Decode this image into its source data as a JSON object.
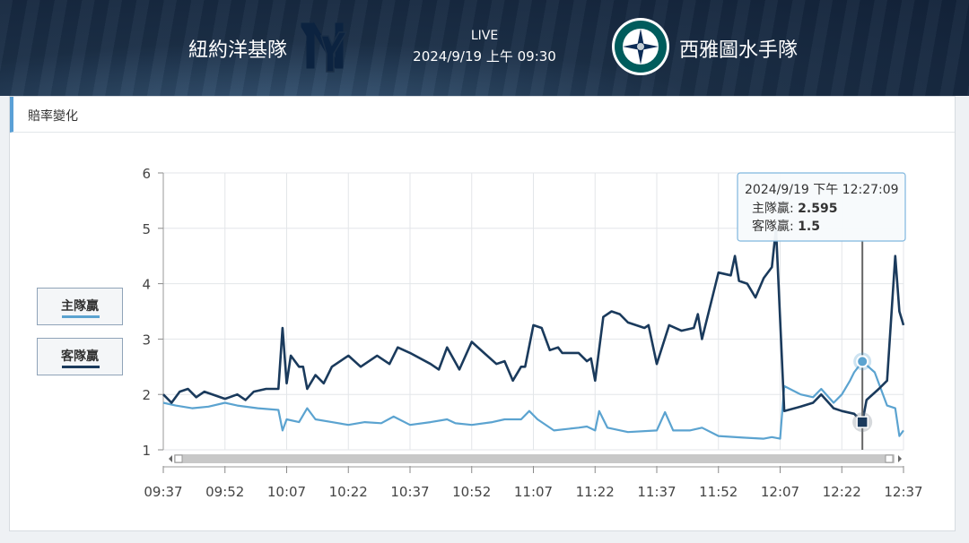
{
  "header": {
    "home_team": "紐約洋基隊",
    "away_team": "西雅圖水手隊",
    "status": "LIVE",
    "datetime": "2024/9/19 上午 09:30",
    "home_logo_icon": "yankees-ny-logo-icon",
    "away_logo_icon": "mariners-compass-logo-icon"
  },
  "panel": {
    "title": "賠率變化"
  },
  "legend": {
    "home_label": "主隊贏",
    "away_label": "客隊贏"
  },
  "colors": {
    "home": "#5ba3d0",
    "away": "#1a3a5c"
  },
  "tooltip": {
    "time": "2024/9/19 下午 12:27:09",
    "home_label": "主隊贏:",
    "home_value": "2.595",
    "away_label": "客隊贏:",
    "away_value": "1.5"
  },
  "chart_data": {
    "type": "line",
    "ylim": [
      1,
      6
    ],
    "yticks": [
      "1",
      "2",
      "3",
      "4",
      "5",
      "6"
    ],
    "xticks": [
      "09:37",
      "09:52",
      "10:07",
      "10:22",
      "10:37",
      "10:52",
      "11:07",
      "11:22",
      "11:37",
      "11:52",
      "12:07",
      "12:22",
      "12:37"
    ],
    "x_start_label": "09:37",
    "series": [
      {
        "name": "主隊贏",
        "color": "#5ba3d0",
        "points": [
          [
            "09:37",
            1.85
          ],
          [
            "09:40",
            1.8
          ],
          [
            "09:44",
            1.75
          ],
          [
            "09:48",
            1.78
          ],
          [
            "09:52",
            1.85
          ],
          [
            "09:55",
            1.8
          ],
          [
            "10:00",
            1.75
          ],
          [
            "10:05",
            1.72
          ],
          [
            "10:06",
            1.35
          ],
          [
            "10:07",
            1.55
          ],
          [
            "10:10",
            1.5
          ],
          [
            "10:12",
            1.75
          ],
          [
            "10:14",
            1.55
          ],
          [
            "10:18",
            1.5
          ],
          [
            "10:22",
            1.45
          ],
          [
            "10:26",
            1.5
          ],
          [
            "10:30",
            1.48
          ],
          [
            "10:33",
            1.6
          ],
          [
            "10:37",
            1.45
          ],
          [
            "10:42",
            1.5
          ],
          [
            "10:46",
            1.55
          ],
          [
            "10:48",
            1.48
          ],
          [
            "10:52",
            1.45
          ],
          [
            "10:57",
            1.5
          ],
          [
            "11:00",
            1.55
          ],
          [
            "11:04",
            1.55
          ],
          [
            "11:06",
            1.7
          ],
          [
            "11:08",
            1.55
          ],
          [
            "11:12",
            1.35
          ],
          [
            "11:18",
            1.4
          ],
          [
            "11:20",
            1.42
          ],
          [
            "11:22",
            1.35
          ],
          [
            "11:23",
            1.7
          ],
          [
            "11:25",
            1.4
          ],
          [
            "11:30",
            1.32
          ],
          [
            "11:37",
            1.35
          ],
          [
            "11:39",
            1.68
          ],
          [
            "11:41",
            1.35
          ],
          [
            "11:45",
            1.35
          ],
          [
            "11:48",
            1.4
          ],
          [
            "11:52",
            1.25
          ],
          [
            "11:58",
            1.22
          ],
          [
            "12:03",
            1.2
          ],
          [
            "12:05",
            1.23
          ],
          [
            "12:07",
            1.2
          ],
          [
            "12:08",
            2.15
          ],
          [
            "12:12",
            2.0
          ],
          [
            "12:15",
            1.95
          ],
          [
            "12:17",
            2.1
          ],
          [
            "12:20",
            1.85
          ],
          [
            "12:22",
            2.0
          ],
          [
            "12:24",
            2.25
          ],
          [
            "12:25",
            2.4
          ],
          [
            "12:27",
            2.595
          ],
          [
            "12:30",
            2.4
          ],
          [
            "12:33",
            1.8
          ],
          [
            "12:35",
            1.75
          ],
          [
            "12:36",
            1.25
          ],
          [
            "12:37",
            1.35
          ]
        ]
      },
      {
        "name": "客隊贏",
        "color": "#1a3a5c",
        "points": [
          [
            "09:37",
            2.0
          ],
          [
            "09:39",
            1.85
          ],
          [
            "09:41",
            2.05
          ],
          [
            "09:43",
            2.1
          ],
          [
            "09:45",
            1.95
          ],
          [
            "09:47",
            2.05
          ],
          [
            "09:52",
            1.92
          ],
          [
            "09:55",
            2.0
          ],
          [
            "09:57",
            1.9
          ],
          [
            "09:59",
            2.05
          ],
          [
            "10:02",
            2.1
          ],
          [
            "10:05",
            2.1
          ],
          [
            "10:06",
            3.2
          ],
          [
            "10:07",
            2.2
          ],
          [
            "10:08",
            2.7
          ],
          [
            "10:10",
            2.5
          ],
          [
            "10:11",
            2.5
          ],
          [
            "10:12",
            2.1
          ],
          [
            "10:14",
            2.35
          ],
          [
            "10:16",
            2.2
          ],
          [
            "10:18",
            2.5
          ],
          [
            "10:22",
            2.7
          ],
          [
            "10:25",
            2.5
          ],
          [
            "10:29",
            2.7
          ],
          [
            "10:32",
            2.55
          ],
          [
            "10:34",
            2.85
          ],
          [
            "10:37",
            2.75
          ],
          [
            "10:42",
            2.55
          ],
          [
            "10:44",
            2.45
          ],
          [
            "10:46",
            2.85
          ],
          [
            "10:49",
            2.45
          ],
          [
            "10:52",
            2.95
          ],
          [
            "10:55",
            2.75
          ],
          [
            "10:58",
            2.55
          ],
          [
            "11:00",
            2.6
          ],
          [
            "11:02",
            2.25
          ],
          [
            "11:04",
            2.5
          ],
          [
            "11:05",
            2.5
          ],
          [
            "11:07",
            3.25
          ],
          [
            "11:09",
            3.2
          ],
          [
            "11:11",
            2.8
          ],
          [
            "11:13",
            2.85
          ],
          [
            "11:14",
            2.75
          ],
          [
            "11:16",
            2.75
          ],
          [
            "11:18",
            2.75
          ],
          [
            "11:20",
            2.6
          ],
          [
            "11:21",
            2.65
          ],
          [
            "11:22",
            2.25
          ],
          [
            "11:24",
            3.4
          ],
          [
            "11:26",
            3.5
          ],
          [
            "11:28",
            3.45
          ],
          [
            "11:30",
            3.3
          ],
          [
            "11:34",
            3.2
          ],
          [
            "11:35",
            3.25
          ],
          [
            "11:37",
            2.55
          ],
          [
            "11:40",
            3.25
          ],
          [
            "11:43",
            3.15
          ],
          [
            "11:46",
            3.2
          ],
          [
            "11:47",
            3.45
          ],
          [
            "11:48",
            3.0
          ],
          [
            "11:52",
            4.2
          ],
          [
            "11:55",
            4.15
          ],
          [
            "11:56",
            4.5
          ],
          [
            "11:57",
            4.05
          ],
          [
            "11:59",
            4.0
          ],
          [
            "12:01",
            3.75
          ],
          [
            "12:03",
            4.1
          ],
          [
            "12:05",
            4.3
          ],
          [
            "12:06",
            5.0
          ],
          [
            "12:08",
            1.7
          ],
          [
            "12:12",
            1.78
          ],
          [
            "12:15",
            1.85
          ],
          [
            "12:17",
            2.0
          ],
          [
            "12:20",
            1.75
          ],
          [
            "12:22",
            1.7
          ],
          [
            "12:25",
            1.65
          ],
          [
            "12:27",
            1.5
          ],
          [
            "12:28",
            1.9
          ],
          [
            "12:31",
            2.1
          ],
          [
            "12:33",
            2.25
          ],
          [
            "12:35",
            4.5
          ],
          [
            "12:36",
            3.5
          ],
          [
            "12:37",
            3.25
          ]
        ]
      }
    ],
    "crosshair_time": "12:27",
    "grid": true
  }
}
